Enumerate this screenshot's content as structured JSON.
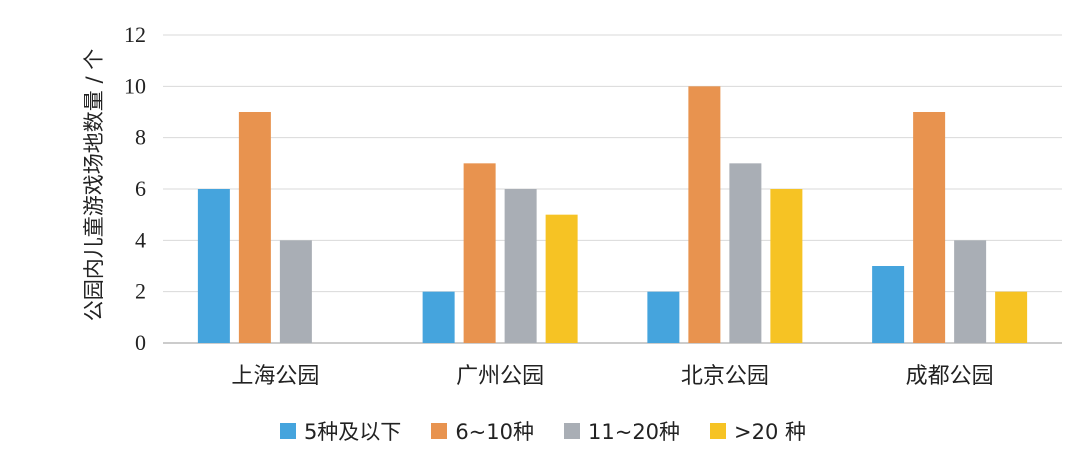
{
  "chart_data": {
    "type": "bar",
    "ylabel": "公园内儿童游戏场地数量 / 个",
    "xlabel": "",
    "ylim": [
      0,
      12
    ],
    "yticks": [
      0,
      2,
      4,
      6,
      8,
      10,
      12
    ],
    "grid": true,
    "legend_position": "bottom",
    "categories": [
      "上海公园",
      "广州公园",
      "北京公园",
      "成都公园"
    ],
    "series": [
      {
        "name": "5种及以下",
        "color": "#45a4dd",
        "values": [
          6,
          2,
          2,
          3
        ]
      },
      {
        "name": "6~10种",
        "color": "#e8934f",
        "values": [
          9,
          7,
          10,
          9
        ]
      },
      {
        "name": "11~20种",
        "color": "#a9aeb5",
        "values": [
          4,
          6,
          7,
          4
        ]
      },
      {
        "name": ">20 种",
        "color": "#f6c324",
        "values": [
          0,
          5,
          6,
          2
        ]
      }
    ]
  }
}
